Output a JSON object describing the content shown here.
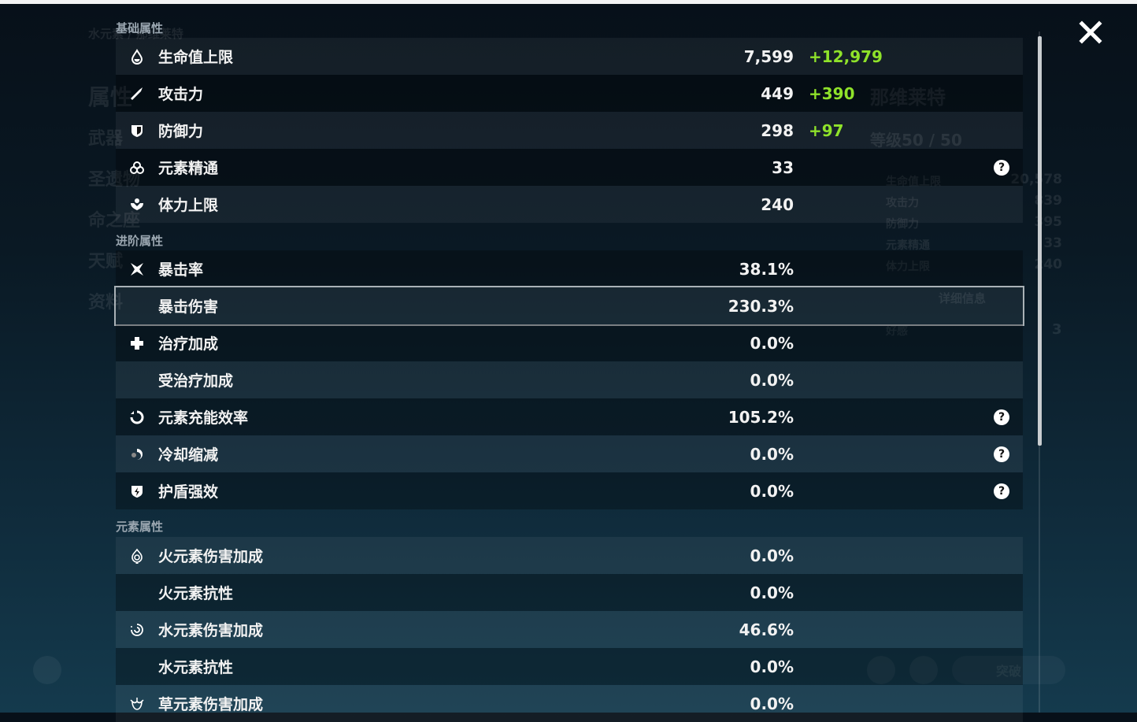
{
  "background": {
    "character_title": "水元素 / 那维莱特",
    "character_name": "那维莱特",
    "level": "等级50 / 50",
    "side_menu": [
      "属性",
      "武器",
      "圣遗物",
      "命之座",
      "天赋",
      "资料"
    ],
    "detail_button": "详细信息",
    "ascend_button": "突破",
    "mini_stats": [
      {
        "label": "生命值上限",
        "value": "20,578"
      },
      {
        "label": "攻击力",
        "value": "839"
      },
      {
        "label": "防御力",
        "value": "395"
      },
      {
        "label": "元素精通",
        "value": "33"
      },
      {
        "label": "体力上限",
        "value": "240"
      }
    ],
    "friendship_label": "好感",
    "friendship_value": "3"
  },
  "sections": [
    {
      "title": "基础属性",
      "rows": [
        {
          "icon": "droplet-icon",
          "label": "生命值上限",
          "value": "7,599",
          "bonus": "+12,979"
        },
        {
          "icon": "sword-icon",
          "label": "攻击力",
          "value": "449",
          "bonus": "+390"
        },
        {
          "icon": "shield-icon",
          "label": "防御力",
          "value": "298",
          "bonus": "+97"
        },
        {
          "icon": "elemental-mastery-icon",
          "label": "元素精通",
          "value": "33",
          "help": true
        },
        {
          "icon": "stamina-icon",
          "label": "体力上限",
          "value": "240"
        }
      ]
    },
    {
      "title": "进阶属性",
      "rows": [
        {
          "icon": "crit-rate-icon",
          "label": "暴击率",
          "value": "38.1%"
        },
        {
          "icon": "",
          "label": "暴击伤害",
          "value": "230.3%",
          "selected": true
        },
        {
          "icon": "healing-cross-icon",
          "label": "治疗加成",
          "value": "0.0%"
        },
        {
          "icon": "",
          "label": "受治疗加成",
          "value": "0.0%"
        },
        {
          "icon": "energy-recharge-icon",
          "label": "元素充能效率",
          "value": "105.2%",
          "help": true
        },
        {
          "icon": "cooldown-icon",
          "label": "冷却缩减",
          "value": "0.0%",
          "help": true
        },
        {
          "icon": "shield-strength-icon",
          "label": "护盾强效",
          "value": "0.0%",
          "help": true
        }
      ]
    },
    {
      "title": "元素属性",
      "rows": [
        {
          "icon": "pyro-icon",
          "label": "火元素伤害加成",
          "value": "0.0%"
        },
        {
          "icon": "",
          "label": "火元素抗性",
          "value": "0.0%"
        },
        {
          "icon": "hydro-icon",
          "label": "水元素伤害加成",
          "value": "46.6%"
        },
        {
          "icon": "",
          "label": "水元素抗性",
          "value": "0.0%"
        },
        {
          "icon": "dendro-icon",
          "label": "草元素伤害加成",
          "value": "0.0%"
        }
      ]
    }
  ],
  "help_glyph": "?",
  "colors": {
    "bonus": "#8fe22a",
    "highlight_border": "#a9b1b6"
  }
}
